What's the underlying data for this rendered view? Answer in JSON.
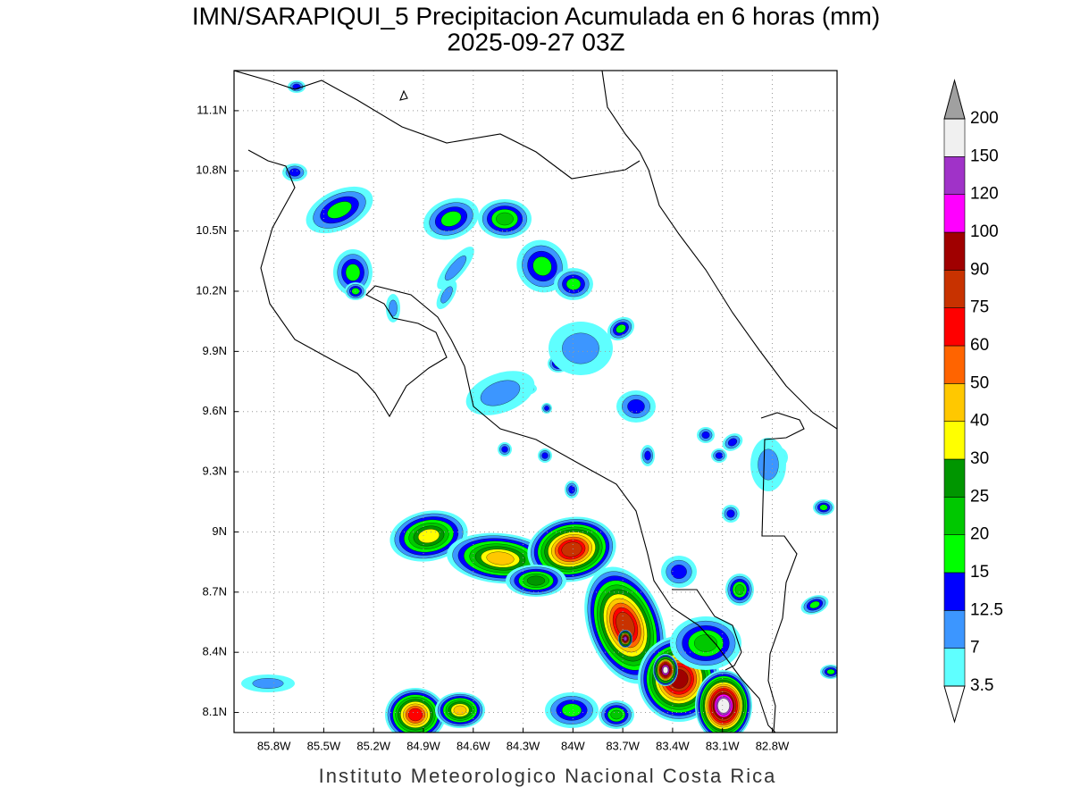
{
  "chart_data": {
    "type": "contour-map",
    "title": "IMN/SARAPIQUI_5 Precipitacion Acumulada en 6 horas (mm)",
    "subtitle": "2025-09-27 03Z",
    "xlim": [
      -86.04,
      -82.41
    ],
    "ylim": [
      8.0,
      11.3
    ],
    "xticks": [
      {
        "value": -85.8,
        "label": "85.8W"
      },
      {
        "value": -85.5,
        "label": "85.5W"
      },
      {
        "value": -85.2,
        "label": "85.2W"
      },
      {
        "value": -84.9,
        "label": "84.9W"
      },
      {
        "value": -84.6,
        "label": "84.6W"
      },
      {
        "value": -84.3,
        "label": "84.3W"
      },
      {
        "value": -84,
        "label": "84W"
      },
      {
        "value": -83.7,
        "label": "83.7W"
      },
      {
        "value": -83.4,
        "label": "83.4W"
      },
      {
        "value": -83.1,
        "label": "83.1W"
      },
      {
        "value": -82.8,
        "label": "82.8W"
      }
    ],
    "yticks": [
      {
        "value": 8.1,
        "label": "8.1N"
      },
      {
        "value": 8.4,
        "label": "8.4N"
      },
      {
        "value": 8.7,
        "label": "8.7N"
      },
      {
        "value": 9,
        "label": "9N"
      },
      {
        "value": 9.3,
        "label": "9.3N"
      },
      {
        "value": 9.6,
        "label": "9.6N"
      },
      {
        "value": 9.9,
        "label": "9.9N"
      },
      {
        "value": 10.2,
        "label": "10.2N"
      },
      {
        "value": 10.5,
        "label": "10.5N"
      },
      {
        "value": 10.8,
        "label": "10.8N"
      },
      {
        "value": 11.1,
        "label": "11.1N"
      }
    ],
    "grid": true,
    "colorbar": {
      "levels": [
        3.5,
        7,
        12.5,
        15,
        20,
        25,
        30,
        40,
        50,
        60,
        75,
        90,
        100,
        120,
        150,
        200
      ],
      "colors": [
        "#5fffff",
        "#3c96ff",
        "#0000ff",
        "#00ff00",
        "#00c800",
        "#009600",
        "#ffff00",
        "#ffc800",
        "#ff6400",
        "#ff0000",
        "#c83200",
        "#a00000",
        "#ff00ff",
        "#a032c8",
        "#f0f0f0"
      ],
      "under_color": "#ffffff",
      "over_color": "#a0a0a0"
    },
    "footer": "Instituto Meteorologico Nacional Costa Rica"
  }
}
